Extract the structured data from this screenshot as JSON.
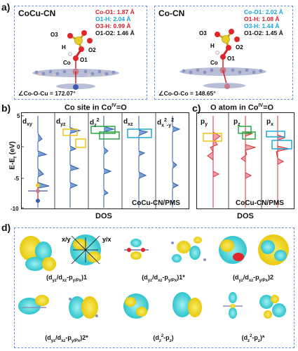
{
  "panel_a": {
    "label": "a)",
    "left": {
      "title": "CoCu-CN",
      "bonds": [
        {
          "text": "Co-O1: 1.87 Å",
          "color": "#d6202a"
        },
        {
          "text": "O1-H: 2.04 Å",
          "color": "#18a6d6"
        },
        {
          "text": "O3-H: 0.99 Å",
          "color": "#d6202a"
        },
        {
          "text": "O1-O2: 1.46 Å",
          "color": "#111111"
        }
      ],
      "atoms": {
        "o3": "O3",
        "h": "H",
        "o2": "O2",
        "o1": "O1",
        "co": "Co"
      },
      "angle": "∠Co-O-Cu = 172.07°"
    },
    "right": {
      "title": "Co-CN",
      "bonds": [
        {
          "text": "Co-O1: 2.02 Å",
          "color": "#18a6d6"
        },
        {
          "text": "O1-H: 1.08 Å",
          "color": "#d6202a"
        },
        {
          "text": "O3-H: 1.44 Å",
          "color": "#18a6d6"
        },
        {
          "text": "O1-O2: 1.45 Å",
          "color": "#111111"
        }
      ],
      "atoms": {
        "o3": "O3",
        "h": "H",
        "o2": "O2",
        "o1": "O1",
        "co": "Co"
      },
      "angle": "∠Co-O-Co = 148.65°"
    }
  },
  "panel_b": {
    "label": "b)",
    "title": "Co site in Co",
    "title_sup": "IV",
    "title_tail": "=O",
    "ylabel": "E-E",
    "ylabel_sub": "f",
    "ylabel_tail": " (eV)",
    "ticks": [
      "5",
      "0",
      "-5",
      "-10"
    ],
    "xlabel": "DOS",
    "system": "CoCu-CN/PMS",
    "orbitals": [
      "d",
      "d",
      "d",
      "d",
      "d"
    ],
    "orbital_subs": [
      "xy",
      "yz",
      "z",
      "xz",
      "x"
    ],
    "orbital_sups": [
      "",
      "",
      "2",
      "",
      "2"
    ],
    "orbital_tails": [
      "",
      "",
      "",
      "",
      "-y"
    ],
    "orbital_tail_sups": [
      "",
      "",
      "",
      "",
      "2"
    ]
  },
  "panel_c": {
    "label": "c)",
    "title": "O atom in Co",
    "title_sup": "IV",
    "title_tail": "=O",
    "ticks": [
      "5",
      "0",
      "-5",
      "-10"
    ],
    "xlabel": "DOS",
    "system": "CoCu-CN/PMS",
    "orbitals": [
      "p",
      "p",
      "p"
    ],
    "orbital_subs": [
      "y",
      "z",
      "x"
    ]
  },
  "panel_d": {
    "label": "d)",
    "axis_labels": {
      "xy": "x/y",
      "yx": "y/x"
    },
    "row1": [
      "(d/d-p)1",
      "(d/d-p)1*",
      "(d/d-p)2"
    ],
    "row1_parts": [
      {
        "pre": "(d",
        "s1": "yz",
        "mid": "/d",
        "s2": "xz",
        "mid2": "-p",
        "s3": "y/Px",
        "post": ")1"
      },
      {
        "pre": "(d",
        "s1": "yz",
        "mid": "/d",
        "s2": "xz",
        "mid2": "-p",
        "s3": "y/Px",
        "post": ")1*"
      },
      {
        "pre": "(d",
        "s1": "yz",
        "mid": "/d",
        "s2": "xz",
        "mid2": "-p",
        "s3": "y/Px",
        "post": ")2"
      }
    ],
    "row2_parts": [
      {
        "pre": "(d",
        "s1": "yz",
        "mid": "/d",
        "s2": "xz",
        "mid2": "-p",
        "s3": "y/Px",
        "post": ")2*"
      },
      {
        "pre": "(d",
        "s1": "z",
        "sup": "2",
        "mid": "-p",
        "s2": "z",
        "post": ")"
      },
      {
        "pre": "(d",
        "s1": "z",
        "sup": "2",
        "mid": "-p",
        "s2": "z",
        "post": ")*"
      }
    ]
  },
  "colors": {
    "red": "#d6202a",
    "cyan": "#18a6d6",
    "blue_dos": "#2f5fa8",
    "red_dos": "#d6303a",
    "yellow_box": "#f2c314",
    "green_box": "#2aa545",
    "cyan_box": "#1ea9d8",
    "orbital_yellow": "#f4e01a",
    "orbital_cyan": "#3fd3d8",
    "dash": "#6f8fd8"
  }
}
